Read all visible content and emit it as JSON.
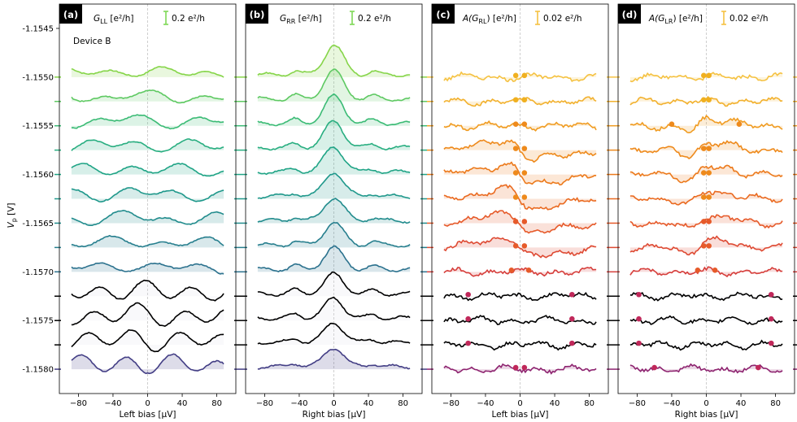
{
  "chart_data": {
    "type": "line",
    "y_axis": {
      "label": "V_p [V]",
      "ticks": [
        "-1.1545",
        "-1.1550",
        "-1.1555",
        "-1.1560",
        "-1.1565",
        "-1.1570",
        "-1.1575",
        "-1.1580"
      ],
      "tick_values": [
        -1.1545,
        -1.155,
        -1.1555,
        -1.156,
        -1.1565,
        -1.157,
        -1.1575,
        -1.158
      ],
      "range": [
        -1.15825,
        -1.15425
      ]
    },
    "x_ticks": [
      "−80",
      "−40",
      "0",
      "40",
      "80"
    ],
    "x_tick_values": [
      -80,
      -40,
      0,
      40,
      80
    ],
    "x_range": [
      -102,
      102
    ],
    "trace_vp": [
      -1.155,
      -1.15525,
      -1.1555,
      -1.15575,
      -1.156,
      -1.15625,
      -1.1565,
      -1.15675,
      -1.157,
      -1.15725,
      -1.1575,
      -1.15775,
      -1.158
    ],
    "panels": [
      {
        "badge": "(a)",
        "header_main": "G",
        "header_sub": "LL",
        "header_unit": " [e²/h]",
        "scalebar_text": "0.2 e²/h",
        "scalebar_color": "#7ed957",
        "xlabel": "Left bias [μV]",
        "annotation": "Device B",
        "profile": "LL",
        "colors": [
          "#86d549",
          "#5ec962",
          "#3bbb75",
          "#28ae80",
          "#20a486",
          "#1f988b",
          "#228c8d",
          "#277f8e",
          "#2c728e",
          "#000000",
          "#000000",
          "#000000",
          "#433e85"
        ]
      },
      {
        "badge": "(b)",
        "header_main": "G",
        "header_sub": "RR",
        "header_unit": " [e²/h]",
        "scalebar_text": "0.2 e²/h",
        "scalebar_color": "#7ed957",
        "xlabel": "Right bias [μV]",
        "annotation": "",
        "profile": "RR",
        "colors": [
          "#86d549",
          "#5ec962",
          "#3bbb75",
          "#28ae80",
          "#20a486",
          "#1f988b",
          "#228c8d",
          "#277f8e",
          "#2c728e",
          "#000000",
          "#000000",
          "#000000",
          "#433e85"
        ]
      },
      {
        "badge": "(c)",
        "header_main": "A(G",
        "header_sub": "RL",
        "header_unit": ") [e²/h]",
        "scalebar_text": "0.02 e²/h",
        "scalebar_color": "#f5c242",
        "xlabel": "Left bias [μV]",
        "annotation": "",
        "profile": "RL",
        "colors": [
          "#f5c242",
          "#f2b12e",
          "#f09c22",
          "#ee8a1c",
          "#ec7a1c",
          "#ea6a20",
          "#e65a2a",
          "#de4a33",
          "#d63f3c",
          "#000000",
          "#000000",
          "#000000",
          "#8e2470"
        ],
        "dot_color": "#f0a020",
        "dots": [
          [
            -5,
            5
          ],
          [
            -5,
            5
          ],
          [
            -5,
            5
          ],
          [
            -5,
            5
          ],
          [
            -5,
            5
          ],
          [
            -5,
            5
          ],
          [
            -5,
            5
          ],
          [
            -5,
            5
          ],
          [
            -10,
            10
          ],
          [
            -60,
            60
          ],
          [
            -60,
            60
          ],
          [
            -60,
            60
          ],
          [
            -5,
            5
          ]
        ]
      },
      {
        "badge": "(d)",
        "header_main": "A(G",
        "header_sub": "LR",
        "header_unit": ") [e²/h]",
        "scalebar_text": "0.02 e²/h",
        "scalebar_color": "#f5c242",
        "xlabel": "Right bias [μV]",
        "annotation": "",
        "profile": "LR",
        "colors": [
          "#f5c242",
          "#f2b12e",
          "#f09c22",
          "#ee8a1c",
          "#ec7a1c",
          "#ea6a20",
          "#e65a2a",
          "#de4a33",
          "#d63f3c",
          "#000000",
          "#000000",
          "#000000",
          "#8e2470"
        ],
        "dot_color": "#f0a020",
        "dots": [
          [
            -3,
            3
          ],
          [
            -3,
            3
          ],
          [
            -40,
            38
          ],
          [
            -3,
            3
          ],
          [
            -3,
            3
          ],
          [
            -3,
            3
          ],
          [
            -3,
            3
          ],
          [
            -3,
            3
          ],
          [
            -10,
            10
          ],
          [
            -78,
            75
          ],
          [
            -78,
            75
          ],
          [
            -78,
            75
          ],
          [
            -60,
            60
          ]
        ]
      }
    ]
  }
}
